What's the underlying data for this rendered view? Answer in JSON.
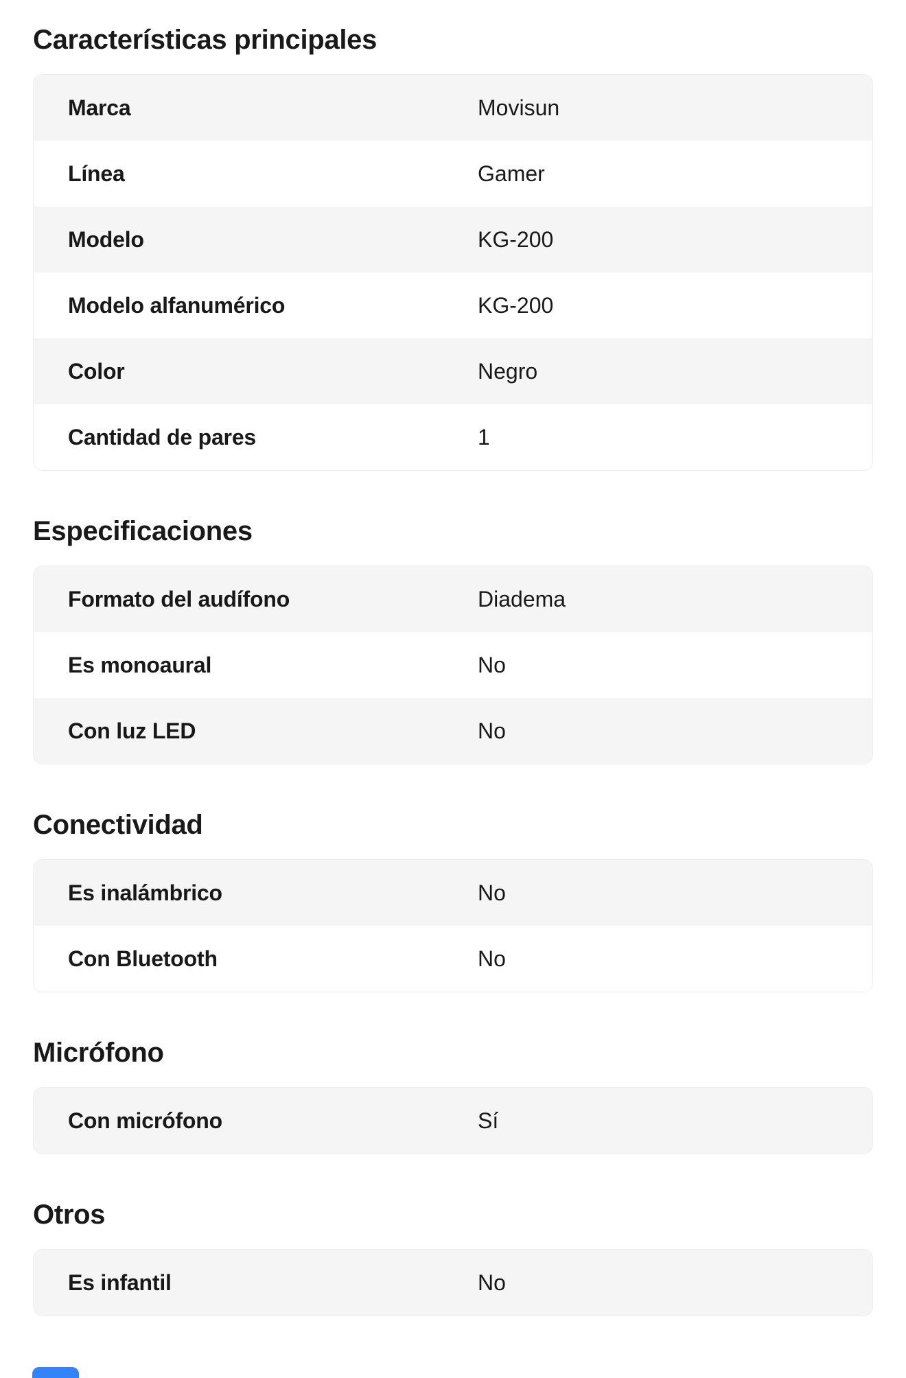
{
  "colors": {
    "row_stripe": "#f5f5f5",
    "row_white": "#ffffff",
    "table_border": "#ededed",
    "text": "#1a1a1a",
    "accent_blue": "#3483fa"
  },
  "sections": [
    {
      "title": "Características principales",
      "rows": [
        {
          "label": "Marca",
          "value": "Movisun"
        },
        {
          "label": "Línea",
          "value": "Gamer"
        },
        {
          "label": "Modelo",
          "value": "KG-200"
        },
        {
          "label": "Modelo alfanumérico",
          "value": "KG-200"
        },
        {
          "label": "Color",
          "value": "Negro"
        },
        {
          "label": "Cantidad de pares",
          "value": "1"
        }
      ]
    },
    {
      "title": "Especificaciones",
      "rows": [
        {
          "label": "Formato del audífono",
          "value": "Diadema"
        },
        {
          "label": "Es monoaural",
          "value": "No"
        },
        {
          "label": "Con luz LED",
          "value": "No"
        }
      ]
    },
    {
      "title": "Conectividad",
      "rows": [
        {
          "label": "Es inalámbrico",
          "value": "No"
        },
        {
          "label": "Con Bluetooth",
          "value": "No"
        }
      ]
    },
    {
      "title": "Micrófono",
      "rows": [
        {
          "label": "Con micrófono",
          "value": "Sí"
        }
      ]
    },
    {
      "title": "Otros",
      "rows": [
        {
          "label": "Es infantil",
          "value": "No"
        }
      ]
    }
  ]
}
